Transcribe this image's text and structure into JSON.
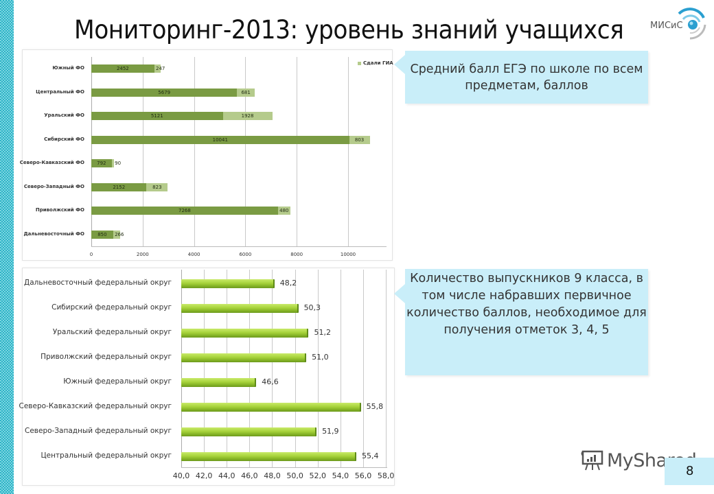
{
  "slide": {
    "title": "Мониторинг-2013: уровень знаний учащихся",
    "logo_text": "МИСиС",
    "page_number": "8",
    "watermark": "MyShared",
    "colors": {
      "strip": "#2bb3c6",
      "callout_bg": "#c9eef9",
      "bar_dark": "#7a9b43",
      "bar_light": "#b5cb8c",
      "bar_green": "#a6d23a"
    }
  },
  "callouts": {
    "top": "Средний балл ЕГЭ по школе по всем предметам, баллов",
    "bottom": "Количество выпускников 9 класса, в том числе набравших первичное количество баллов, необходимое для получения отметок 3, 4, 5"
  },
  "chart_data": [
    {
      "type": "bar",
      "orientation": "horizontal",
      "stacked": true,
      "title": "",
      "categories": [
        "Южный ФО",
        "Центральный ФО",
        "Уральский ФО",
        "Сибирский ФО",
        "Северо-Кавказский ФО",
        "Северо-Западный ФО",
        "Приволжский ФО",
        "Дальневосточный ФО"
      ],
      "series": [
        {
          "name": "",
          "color": "#7a9b43",
          "values": [
            2452,
            5679,
            5121,
            10041,
            792,
            2152,
            7268,
            850
          ]
        },
        {
          "name": "Сдали ГИА",
          "color": "#b5cb8c",
          "values": [
            247,
            681,
            1928,
            803,
            90,
            823,
            480,
            266
          ]
        }
      ],
      "legend": [
        "Сдали ГИА"
      ],
      "legend_position": "top-right",
      "xticks": [
        "0",
        "2000",
        "4000",
        "6000",
        "8000",
        "10000"
      ],
      "xlim": [
        0,
        11500
      ],
      "grid": true,
      "xlabel": "",
      "ylabel": ""
    },
    {
      "type": "bar",
      "orientation": "horizontal",
      "title": "",
      "categories": [
        "Дальневосточный федеральный округ",
        "Сибирский федеральный округ",
        "Уральский федеральный округ",
        "Приволжский федеральный округ",
        "Южный федеральный округ",
        "Северо-Кавказский федеральный округ",
        "Северо-Западный федеральный округ",
        "Центральный федеральный округ"
      ],
      "values": [
        48.2,
        50.3,
        51.2,
        51.0,
        46.6,
        55.8,
        51.9,
        55.4
      ],
      "value_labels": [
        "48,2",
        "50,3",
        "51,2",
        "51,0",
        "46,6",
        "55,8",
        "51,9",
        "55,4"
      ],
      "xticks": [
        "40,0",
        "42,0",
        "44,0",
        "46,0",
        "48,0",
        "50,0",
        "52,0",
        "54,0",
        "56,0",
        "58,0"
      ],
      "xlim": [
        40,
        58
      ],
      "grid": true,
      "xlabel": "",
      "ylabel": ""
    }
  ]
}
